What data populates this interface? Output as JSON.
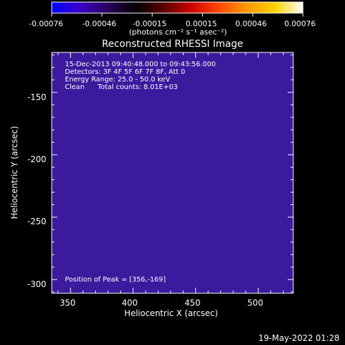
{
  "colorbar": {
    "tick_labels": [
      "-0.00076",
      "-0.00046",
      "-0.00015",
      "0.00015",
      "0.00046",
      "0.00076"
    ],
    "units_label": "(photons cm⁻² s⁻¹ asec⁻²)",
    "color_stops": [
      "#0000ff",
      "#3a00c8",
      "#2a0060",
      "#000000",
      "#5a0000",
      "#d00000",
      "#ff4a00",
      "#ff9a00",
      "#ffd400",
      "#ffffff"
    ]
  },
  "plot": {
    "title": "Reconstructed RHESSI Image",
    "x_axis_label": "Heliocentric X (arcsec)",
    "y_axis_label": "Heliocentric Y (arcsec)",
    "x_tick_labels": [
      "350",
      "400",
      "450",
      "500"
    ],
    "y_tick_labels": [
      "-150",
      "-200",
      "-250",
      "-300"
    ],
    "x_range": [
      335,
      528
    ],
    "y_range": [
      -311,
      -118
    ],
    "info_lines": [
      "15-Dec-2013 09:40:48.000 to 09:43:56.000",
      "Detectors: 3F 4F 5F 6F 7F 8F, Att 0",
      "Energy Range: 25.0 - 50.0 keV",
      "Clean      Total counts: 8.01E+03"
    ],
    "peak_label": "Position of Peak = [356,-169]"
  },
  "footer": {
    "date_stamp": "19-May-2022 01:28"
  }
}
